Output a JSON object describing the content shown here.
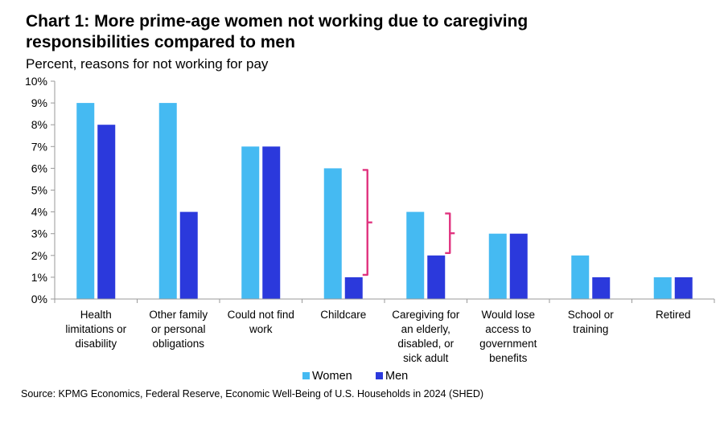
{
  "title": "Chart 1: More prime-age women not working due to caregiving responsibilities compared to men",
  "subtitle": "Percent, reasons for not working for pay",
  "source": "Source: KPMG Economics, Federal Reserve, Economic Well-Being of U.S. Households in 2024 (SHED)",
  "colors": {
    "women": "#45BAF2",
    "men": "#2B39DC",
    "bracket": "#E0337F"
  },
  "chart_data": {
    "type": "bar",
    "title": "Chart 1: More prime-age women not working due to caregiving responsibilities compared to men",
    "subtitle": "Percent, reasons for not working for pay",
    "ylim": [
      0,
      10
    ],
    "yticks": [
      "0%",
      "1%",
      "2%",
      "3%",
      "4%",
      "5%",
      "6%",
      "7%",
      "8%",
      "9%",
      "10%"
    ],
    "categories": [
      [
        "Health",
        "limitations or",
        "disability"
      ],
      [
        "Other family",
        "or personal",
        "obligations"
      ],
      [
        "Could not find",
        "work"
      ],
      [
        "Childcare"
      ],
      [
        "Caregiving for",
        "an elderly,",
        "disabled, or",
        "sick adult"
      ],
      [
        "Would lose",
        "access to",
        "government",
        "benefits"
      ],
      [
        "School or",
        "training"
      ],
      [
        "Retired"
      ]
    ],
    "series": [
      {
        "name": "Women",
        "values": [
          9,
          9,
          7,
          6,
          4,
          3,
          2,
          1
        ]
      },
      {
        "name": "Men",
        "values": [
          8,
          4,
          7,
          1,
          2,
          3,
          1,
          1
        ]
      }
    ],
    "brackets": [
      3,
      4
    ],
    "legend": "bottom",
    "grid": false
  }
}
